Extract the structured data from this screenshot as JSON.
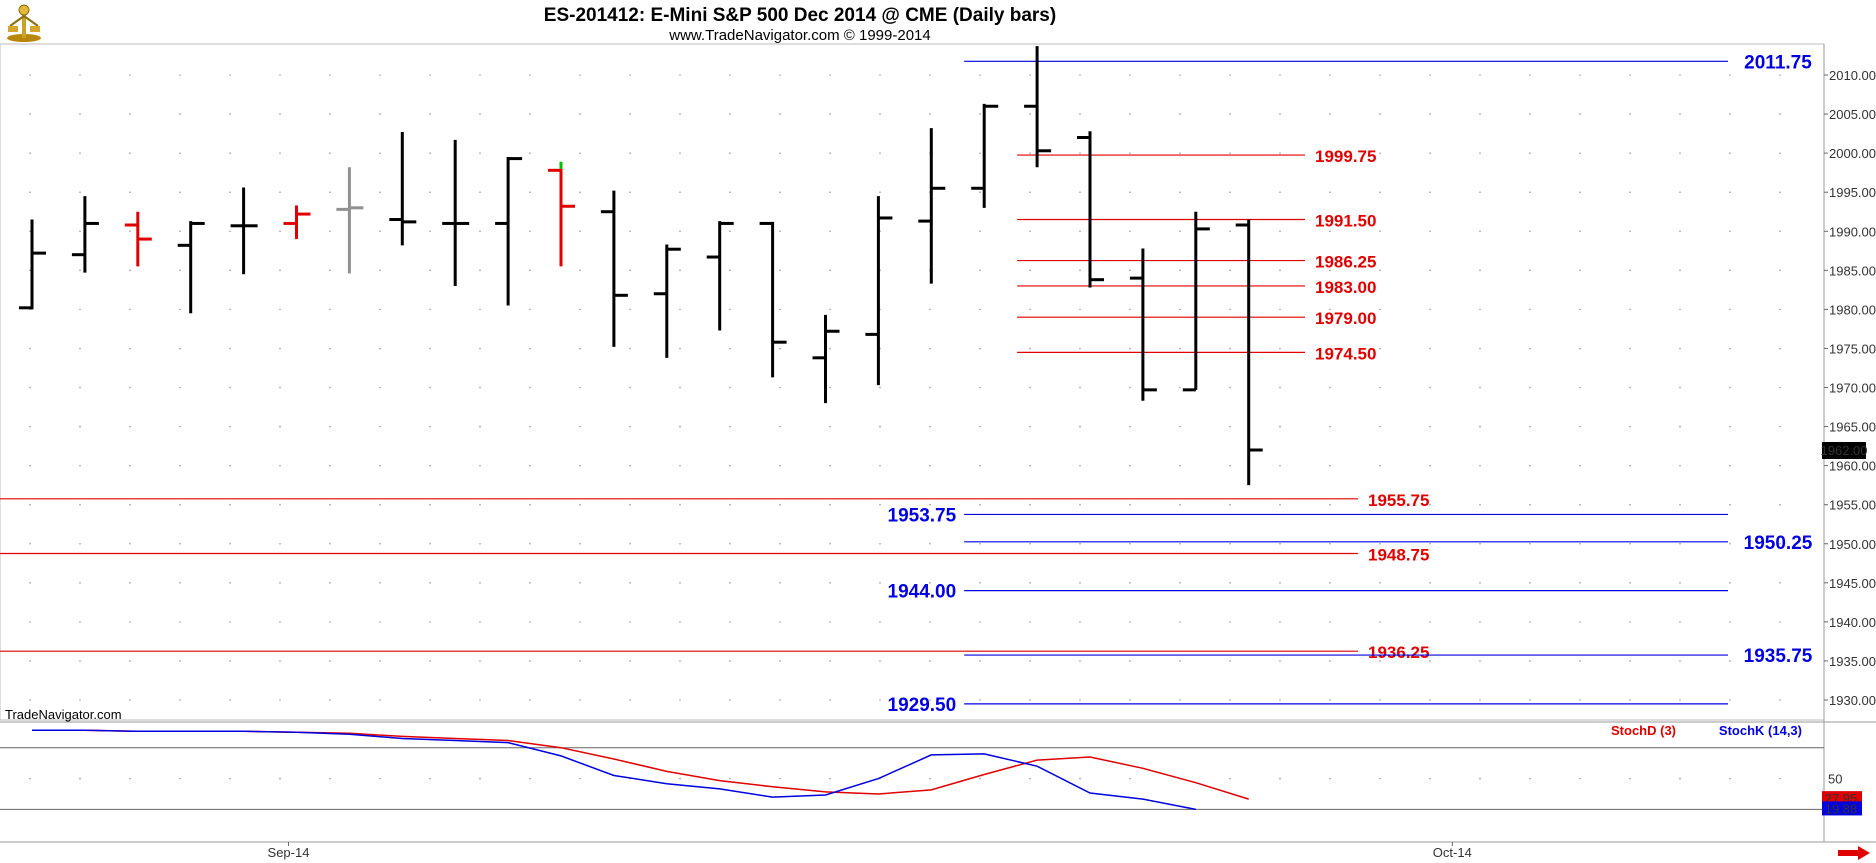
{
  "header": {
    "title": "ES-201412:  E-Mini S&P 500 Dec 2014 @ CME  (Daily bars)",
    "subtitle": "www.TradeNavigator.com © 1999-2014",
    "watermark": "TradeNavigator.com",
    "logo_icon": "trade-navigator-logo-icon"
  },
  "colors": {
    "up_bar": "#000000",
    "down_bar": "#000000",
    "red": "#e00000",
    "blue": "#0000e0",
    "gray_bar": "#909090",
    "green_tick": "#00c000"
  },
  "chart_data": [
    {
      "type": "ohlc",
      "title": "ES-201412:  E-Mini S&P 500 Dec 2014 @ CME  (Daily bars)",
      "ylim": [
        1925,
        2014
      ],
      "y_ticks": [
        "2010.00",
        "2005.00",
        "2000.00",
        "1995.00",
        "1990.00",
        "1985.00",
        "1980.00",
        "1975.00",
        "1970.00",
        "1965.00",
        "1960.00",
        "1955.00",
        "1950.00",
        "1945.00",
        "1940.00",
        "1935.00",
        "1930.00"
      ],
      "x_ticks": [
        {
          "label": "Sep-14",
          "bar": 5
        },
        {
          "label": "Oct-14",
          "bar": 27
        }
      ],
      "last_price": "1962.00",
      "bars": [
        {
          "o": 1980.2,
          "h": 1991.5,
          "l": 1980.0,
          "c": 1987.2,
          "color": "black"
        },
        {
          "o": 1987.0,
          "h": 1994.5,
          "l": 1984.7,
          "c": 1991.0,
          "color": "black"
        },
        {
          "o": 1990.8,
          "h": 1992.5,
          "l": 1985.5,
          "c": 1989.0,
          "color": "red"
        },
        {
          "o": 1988.2,
          "h": 1991.3,
          "l": 1979.5,
          "c": 1991.0,
          "color": "black"
        },
        {
          "o": 1990.7,
          "h": 1995.6,
          "l": 1984.5,
          "c": 1990.7,
          "color": "black"
        },
        {
          "o": 1991.0,
          "h": 1993.3,
          "l": 1989.0,
          "c": 1992.2,
          "color": "red"
        },
        {
          "o": 1992.8,
          "h": 1998.2,
          "l": 1984.6,
          "c": 1993.0,
          "color": "gray"
        },
        {
          "o": 1991.5,
          "h": 2002.7,
          "l": 1988.2,
          "c": 1991.2,
          "color": "black"
        },
        {
          "o": 1991.0,
          "h": 2001.7,
          "l": 1983.0,
          "c": 1991.0,
          "color": "black"
        },
        {
          "o": 1991.0,
          "h": 1999.5,
          "l": 1980.5,
          "c": 1999.3,
          "color": "black"
        },
        {
          "o": 1997.8,
          "h": 1998.0,
          "l": 1985.5,
          "c": 1993.2,
          "color": "red"
        },
        {
          "o": 1992.5,
          "h": 1995.2,
          "l": 1975.2,
          "c": 1981.8,
          "color": "black"
        },
        {
          "o": 1982.0,
          "h": 1988.3,
          "l": 1973.8,
          "c": 1987.7,
          "color": "black"
        },
        {
          "o": 1986.7,
          "h": 1991.3,
          "l": 1977.3,
          "c": 1991.0,
          "color": "black"
        },
        {
          "o": 1991.0,
          "h": 1991.2,
          "l": 1971.3,
          "c": 1975.8,
          "color": "black"
        },
        {
          "o": 1973.8,
          "h": 1979.3,
          "l": 1968.0,
          "c": 1977.2,
          "color": "black"
        },
        {
          "o": 1976.8,
          "h": 1994.5,
          "l": 1970.3,
          "c": 1991.7,
          "color": "black"
        },
        {
          "o": 1991.3,
          "h": 2003.2,
          "l": 1983.3,
          "c": 1995.5,
          "color": "black"
        },
        {
          "o": 1995.5,
          "h": 2006.3,
          "l": 1993.0,
          "c": 2006.0,
          "color": "black"
        },
        {
          "o": 2006.0,
          "h": 2013.7,
          "l": 1998.2,
          "c": 2000.3,
          "color": "black"
        },
        {
          "o": 2002.0,
          "h": 2002.8,
          "l": 1982.8,
          "c": 1983.8,
          "color": "black"
        },
        {
          "o": 1984.0,
          "h": 1987.8,
          "l": 1968.3,
          "c": 1969.7,
          "color": "black"
        },
        {
          "o": 1969.7,
          "h": 1992.5,
          "l": 1969.7,
          "c": 1990.3,
          "color": "black"
        },
        {
          "o": 1990.8,
          "h": 1991.5,
          "l": 1957.5,
          "c": 1962.0,
          "color": "black"
        }
      ],
      "levels": [
        {
          "value": 2011.75,
          "label": "2011.75",
          "color": "blue",
          "start_bar": 18,
          "end": "axis"
        },
        {
          "value": 1999.75,
          "label": "1999.75",
          "color": "red",
          "start_bar": 19,
          "end": "mid"
        },
        {
          "value": 1991.5,
          "label": "1991.50",
          "color": "red",
          "start_bar": 19,
          "end": "mid"
        },
        {
          "value": 1986.25,
          "label": "1986.25",
          "color": "red",
          "start_bar": 19,
          "end": "mid"
        },
        {
          "value": 1983.0,
          "label": "1983.00",
          "color": "red",
          "start_bar": 19,
          "end": "mid"
        },
        {
          "value": 1979.0,
          "label": "1979.00",
          "color": "red",
          "start_bar": 19,
          "end": "mid"
        },
        {
          "value": 1974.5,
          "label": "1974.50",
          "color": "red",
          "start_bar": 19,
          "end": "mid"
        },
        {
          "value": 1955.75,
          "label": "1955.75",
          "color": "red",
          "start_bar": -1,
          "end": "long"
        },
        {
          "value": 1953.75,
          "label": "1953.75",
          "color": "blue",
          "start_bar": 18,
          "end": "axis",
          "label_side": "left"
        },
        {
          "value": 1950.25,
          "label": "1950.25",
          "color": "blue",
          "start_bar": 18,
          "end": "axis"
        },
        {
          "value": 1948.75,
          "label": "1948.75",
          "color": "red",
          "start_bar": -1,
          "end": "long"
        },
        {
          "value": 1944.0,
          "label": "1944.00",
          "color": "blue",
          "start_bar": 18,
          "end": "axis",
          "label_side": "left"
        },
        {
          "value": 1936.25,
          "label": "1936.25",
          "color": "red",
          "start_bar": -1,
          "end": "long"
        },
        {
          "value": 1935.75,
          "label": "1935.75",
          "color": "blue",
          "start_bar": 18,
          "end": "axis"
        },
        {
          "value": 1929.5,
          "label": "1929.50",
          "color": "blue",
          "start_bar": 18,
          "end": "axis",
          "label_side": "left"
        }
      ]
    },
    {
      "type": "line",
      "ylim": [
        15,
        105
      ],
      "y_ticks": [
        "50"
      ],
      "reference_lines": [
        20,
        80
      ],
      "series": [
        {
          "name": "StochD (3)",
          "color": "red",
          "last_label": "27.95",
          "values": [
            97,
            97,
            96,
            96,
            96,
            95,
            94,
            91,
            89,
            87,
            80,
            69,
            57,
            48,
            42,
            37,
            35,
            39,
            54,
            68,
            71,
            60,
            46,
            30
          ]
        },
        {
          "name": "StochK (14,3)",
          "color": "blue",
          "last_label": "19.88",
          "values": [
            97,
            97,
            96,
            96,
            96,
            95,
            93,
            89,
            87,
            85,
            72,
            53,
            45,
            40,
            32,
            34,
            50,
            73,
            74,
            62,
            36,
            30,
            20,
            null
          ]
        }
      ]
    }
  ]
}
